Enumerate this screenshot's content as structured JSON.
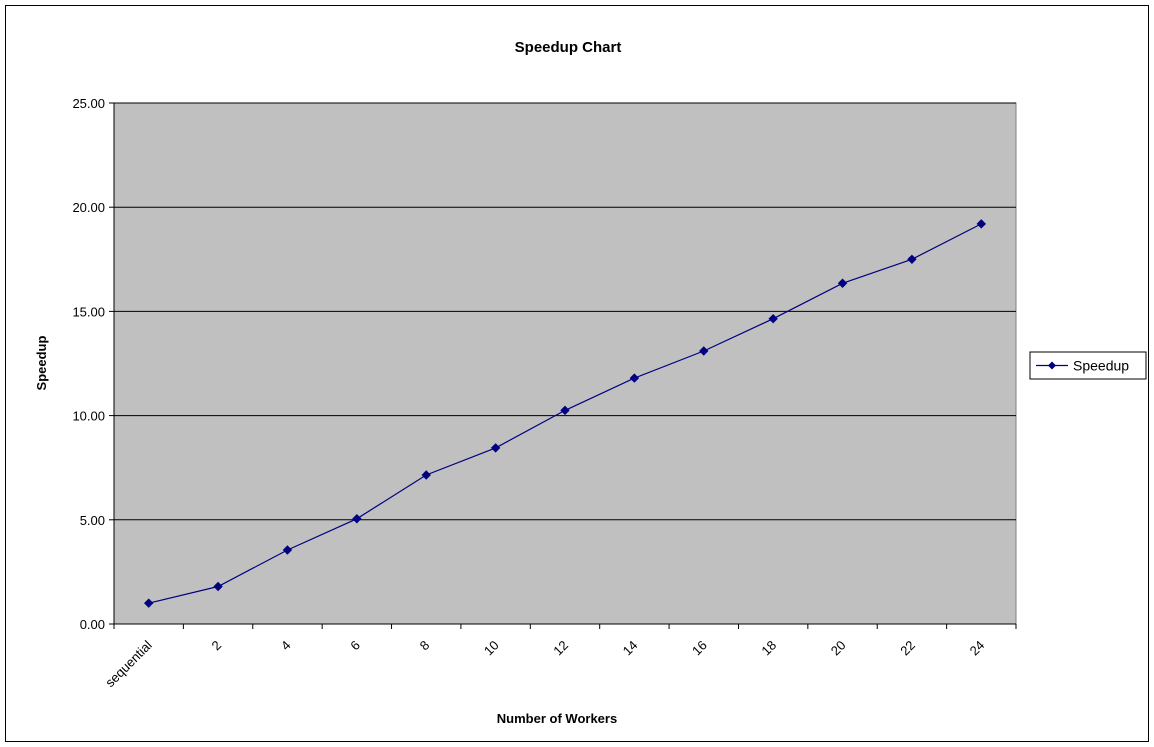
{
  "chart_data": {
    "type": "line",
    "title": "Speedup Chart",
    "xlabel": "Number of Workers",
    "ylabel": "Speedup",
    "categories": [
      "sequential",
      "2",
      "4",
      "6",
      "8",
      "10",
      "12",
      "14",
      "16",
      "18",
      "20",
      "22",
      "24"
    ],
    "ylim": [
      0,
      25
    ],
    "yticks": [
      "0.00",
      "5.00",
      "10.00",
      "15.00",
      "20.00",
      "25.00"
    ],
    "grid": true,
    "legend_position": "right",
    "series": [
      {
        "name": "Speedup",
        "values": [
          1.0,
          1.8,
          3.55,
          5.05,
          7.15,
          8.45,
          10.25,
          11.8,
          13.1,
          14.65,
          16.35,
          17.5,
          19.2
        ]
      }
    ],
    "colors": {
      "series": "#000080",
      "plot_background": "#c0c0c0",
      "gridline": "#000000"
    }
  }
}
